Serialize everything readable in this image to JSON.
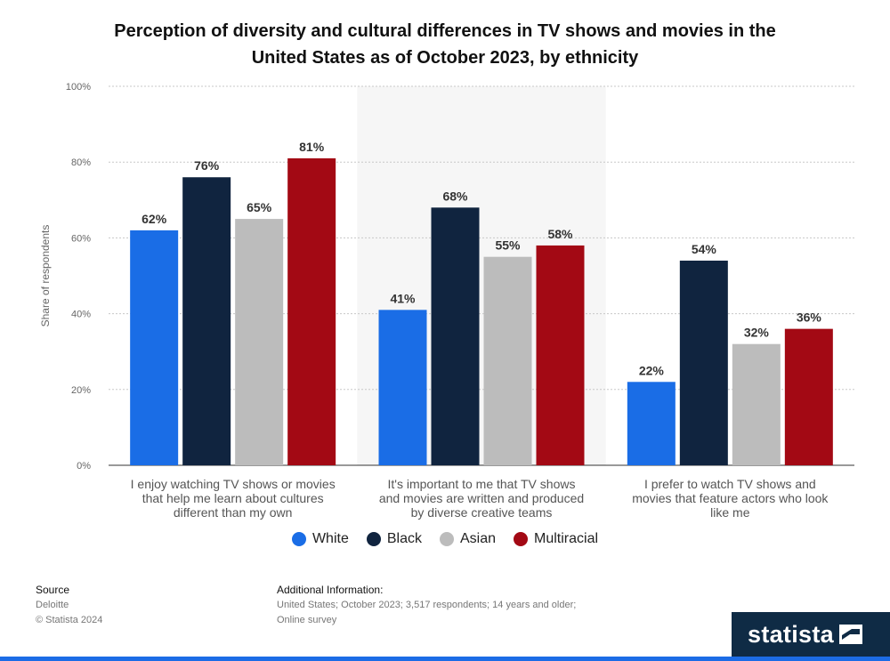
{
  "title_lines": [
    "Perception of diversity and cultural differences in TV shows and movies in the",
    "United States as of October 2023, by ethnicity"
  ],
  "chart_data": {
    "type": "bar",
    "title": "Perception of diversity and cultural differences in TV shows and movies in the United States as of October 2023, by ethnicity",
    "ylabel": "Share of respondents",
    "xlabel": "",
    "ylim": [
      0,
      100
    ],
    "yticks": [
      "0%",
      "20%",
      "40%",
      "60%",
      "80%",
      "100%"
    ],
    "grid": true,
    "legend_position": "bottom",
    "categories": [
      [
        "I enjoy watching TV shows or movies",
        "that help me learn about cultures",
        "different than my own"
      ],
      [
        "It's important to me that TV shows",
        "and movies are written and produced",
        "by diverse creative teams"
      ],
      [
        "I prefer to watch TV shows and",
        "movies that feature actors who look",
        "like me"
      ]
    ],
    "series": [
      {
        "name": "White",
        "color": "#1a6de6",
        "values": [
          62,
          41,
          22
        ]
      },
      {
        "name": "Black",
        "color": "#10243f",
        "values": [
          76,
          68,
          54
        ]
      },
      {
        "name": "Asian",
        "color": "#bcbcbc",
        "values": [
          65,
          55,
          32
        ]
      },
      {
        "name": "Multiracial",
        "color": "#a30914",
        "values": [
          81,
          58,
          36
        ]
      }
    ]
  },
  "footer": {
    "source_label": "Source",
    "source_lines": [
      "Deloitte",
      "© Statista 2024"
    ],
    "info_label": "Additional Information:",
    "info_lines": [
      "United States; October 2023; 3,517 respondents; 14 years and older;",
      "Online survey"
    ]
  },
  "brand": {
    "name": "statista",
    "color": "#0f2b45"
  }
}
